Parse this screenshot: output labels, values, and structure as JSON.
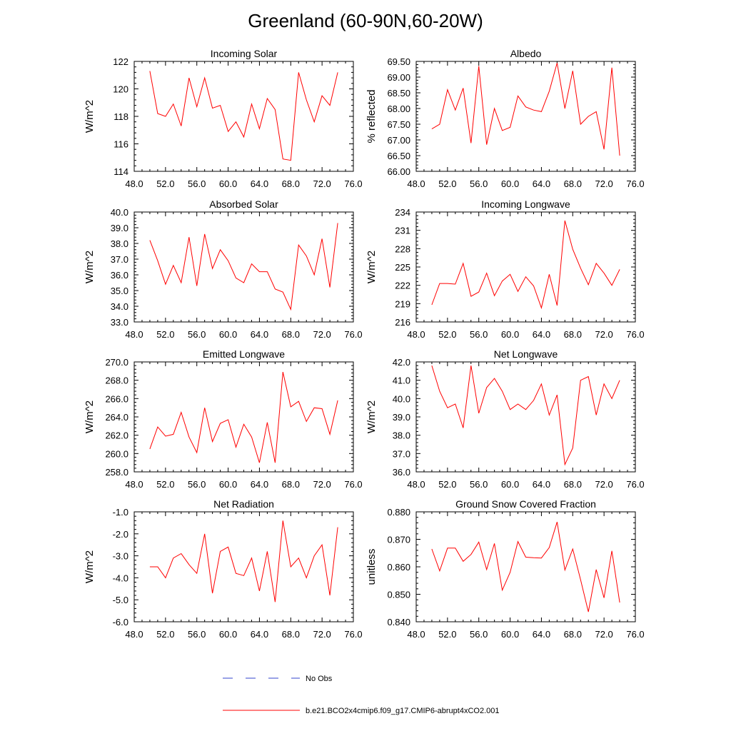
{
  "title": "Greenland (60-90N,60-20W)",
  "colors": {
    "series": "#ff0000",
    "obs": "#3344cc",
    "axis": "#000000"
  },
  "legend": {
    "obs_label": "No Obs",
    "series_label": "b.e21.BCO2x4cmip6.f09_g17.CMIP6-abrupt4xCO2.001"
  },
  "chart_data": [
    {
      "type": "line",
      "title": "Incoming Solar",
      "ylabel": "W/m^2",
      "xlabel": "",
      "xlim": [
        48,
        76
      ],
      "ylim": [
        114,
        122
      ],
      "xticks": [
        "48.0",
        "52.0",
        "56.0",
        "60.0",
        "64.0",
        "68.0",
        "72.0",
        "76.0"
      ],
      "yticks": [
        114,
        116,
        118,
        120,
        122
      ],
      "ytick_labels": [
        "114",
        "116",
        "118",
        "120",
        "122"
      ],
      "x": [
        50,
        51,
        52,
        53,
        54,
        55,
        56,
        57,
        58,
        59,
        60,
        61,
        62,
        63,
        64,
        65,
        66,
        67,
        68,
        69,
        70,
        71,
        72,
        73,
        74
      ],
      "values": [
        121.3,
        118.2,
        118.0,
        118.9,
        117.3,
        120.8,
        118.7,
        120.8,
        118.6,
        118.8,
        116.9,
        117.6,
        116.5,
        118.9,
        117.1,
        119.3,
        118.5,
        114.9,
        114.8,
        121.2,
        119.2,
        117.6,
        119.5,
        118.8,
        121.2
      ]
    },
    {
      "type": "line",
      "title": "Albedo",
      "ylabel": "% reflected",
      "xlabel": "",
      "xlim": [
        48,
        76
      ],
      "ylim": [
        66.0,
        69.5
      ],
      "xticks": [
        "48.0",
        "52.0",
        "56.0",
        "60.0",
        "64.0",
        "68.0",
        "72.0",
        "76.0"
      ],
      "yticks": [
        66.0,
        66.5,
        67.0,
        67.5,
        68.0,
        68.5,
        69.0,
        69.5
      ],
      "ytick_labels": [
        "66.00",
        "66.50",
        "67.00",
        "67.50",
        "68.00",
        "68.50",
        "69.00",
        "69.50"
      ],
      "x": [
        50,
        51,
        52,
        53,
        54,
        55,
        56,
        57,
        58,
        59,
        60,
        61,
        62,
        63,
        64,
        65,
        66,
        67,
        68,
        69,
        70,
        71,
        72,
        73,
        74
      ],
      "values": [
        67.35,
        67.5,
        68.6,
        67.95,
        68.65,
        66.9,
        69.35,
        66.85,
        68.0,
        67.3,
        67.4,
        68.4,
        68.05,
        67.95,
        67.9,
        68.55,
        69.45,
        68.0,
        69.2,
        67.5,
        67.75,
        67.9,
        66.7,
        69.3,
        66.5
      ]
    },
    {
      "type": "line",
      "title": "Absorbed Solar",
      "ylabel": "W/m^2",
      "xlabel": "",
      "xlim": [
        48,
        76
      ],
      "ylim": [
        33.0,
        40.0
      ],
      "xticks": [
        "48.0",
        "52.0",
        "56.0",
        "60.0",
        "64.0",
        "68.0",
        "72.0",
        "76.0"
      ],
      "yticks": [
        33,
        34,
        35,
        36,
        37,
        38,
        39,
        40
      ],
      "ytick_labels": [
        "33.0",
        "34.0",
        "35.0",
        "36.0",
        "37.0",
        "38.0",
        "39.0",
        "40.0"
      ],
      "x": [
        50,
        51,
        52,
        53,
        54,
        55,
        56,
        57,
        58,
        59,
        60,
        61,
        62,
        63,
        64,
        65,
        66,
        67,
        68,
        69,
        70,
        71,
        72,
        73,
        74
      ],
      "values": [
        38.2,
        36.9,
        35.4,
        36.6,
        35.5,
        38.4,
        35.3,
        38.6,
        36.4,
        37.6,
        36.9,
        35.8,
        35.5,
        36.7,
        36.2,
        36.2,
        35.1,
        34.9,
        33.8,
        37.9,
        37.2,
        36.0,
        38.3,
        35.2,
        39.3
      ]
    },
    {
      "type": "line",
      "title": "Incoming Longwave",
      "ylabel": "W/m^2",
      "xlabel": "",
      "xlim": [
        48,
        76
      ],
      "ylim": [
        216,
        234
      ],
      "xticks": [
        "48.0",
        "52.0",
        "56.0",
        "60.0",
        "64.0",
        "68.0",
        "72.0",
        "76.0"
      ],
      "yticks": [
        216,
        219,
        222,
        225,
        228,
        231,
        234
      ],
      "ytick_labels": [
        "216",
        "219",
        "222",
        "225",
        "228",
        "231",
        "234"
      ],
      "x": [
        50,
        51,
        52,
        53,
        54,
        55,
        56,
        57,
        58,
        59,
        60,
        61,
        62,
        63,
        64,
        65,
        66,
        67,
        68,
        69,
        70,
        71,
        72,
        73,
        74
      ],
      "values": [
        218.8,
        222.3,
        222.3,
        222.2,
        225.6,
        220.2,
        220.9,
        224.0,
        220.3,
        222.7,
        223.8,
        221.0,
        223.4,
        221.9,
        218.3,
        223.8,
        218.7,
        232.6,
        227.9,
        224.8,
        222.1,
        225.6,
        224.0,
        222.0,
        224.6
      ]
    },
    {
      "type": "line",
      "title": "Emitted Longwave",
      "ylabel": "W/m^2",
      "xlabel": "",
      "xlim": [
        48,
        76
      ],
      "ylim": [
        258.0,
        270.0
      ],
      "xticks": [
        "48.0",
        "52.0",
        "56.0",
        "60.0",
        "64.0",
        "68.0",
        "72.0",
        "76.0"
      ],
      "yticks": [
        258,
        260,
        262,
        264,
        266,
        268,
        270
      ],
      "ytick_labels": [
        "258.0",
        "260.0",
        "262.0",
        "264.0",
        "266.0",
        "268.0",
        "270.0"
      ],
      "x": [
        50,
        51,
        52,
        53,
        54,
        55,
        56,
        57,
        58,
        59,
        60,
        61,
        62,
        63,
        64,
        65,
        66,
        67,
        68,
        69,
        70,
        71,
        72,
        73,
        74
      ],
      "values": [
        260.5,
        262.9,
        261.9,
        262.1,
        264.5,
        261.8,
        260.1,
        265.0,
        261.3,
        263.3,
        263.7,
        260.7,
        263.2,
        261.8,
        259.0,
        263.4,
        259.0,
        268.9,
        265.1,
        265.7,
        263.5,
        265.0,
        264.9,
        262.1,
        265.8
      ]
    },
    {
      "type": "line",
      "title": "Net Longwave",
      "ylabel": "W/m^2",
      "xlabel": "",
      "xlim": [
        48,
        76
      ],
      "ylim": [
        36.0,
        42.0
      ],
      "xticks": [
        "48.0",
        "52.0",
        "56.0",
        "60.0",
        "64.0",
        "68.0",
        "72.0",
        "76.0"
      ],
      "yticks": [
        36,
        37,
        38,
        39,
        40,
        41,
        42
      ],
      "ytick_labels": [
        "36.0",
        "37.0",
        "38.0",
        "39.0",
        "40.0",
        "41.0",
        "42.0"
      ],
      "x": [
        50,
        51,
        52,
        53,
        54,
        55,
        56,
        57,
        58,
        59,
        60,
        61,
        62,
        63,
        64,
        65,
        66,
        67,
        68,
        69,
        70,
        71,
        72,
        73,
        74
      ],
      "values": [
        41.8,
        40.4,
        39.5,
        39.7,
        38.4,
        41.8,
        39.2,
        40.6,
        41.1,
        40.4,
        39.4,
        39.7,
        39.4,
        39.9,
        40.8,
        39.1,
        40.2,
        36.4,
        37.3,
        41.0,
        41.2,
        39.1,
        40.8,
        40.0,
        41.0
      ]
    },
    {
      "type": "line",
      "title": "Net Radiation",
      "ylabel": "W/m^2",
      "xlabel": "",
      "xlim": [
        48,
        76
      ],
      "ylim": [
        -6.0,
        -1.0
      ],
      "xticks": [
        "48.0",
        "52.0",
        "56.0",
        "60.0",
        "64.0",
        "68.0",
        "72.0",
        "76.0"
      ],
      "yticks": [
        -6,
        -5,
        -4,
        -3,
        -2,
        -1
      ],
      "ytick_labels": [
        "-6.0",
        "-5.0",
        "-4.0",
        "-3.0",
        "-2.0",
        "-1.0"
      ],
      "x": [
        50,
        51,
        52,
        53,
        54,
        55,
        56,
        57,
        58,
        59,
        60,
        61,
        62,
        63,
        64,
        65,
        66,
        67,
        68,
        69,
        70,
        71,
        72,
        73,
        74
      ],
      "values": [
        -3.5,
        -3.5,
        -4.0,
        -3.1,
        -2.9,
        -3.4,
        -3.8,
        -2.0,
        -4.7,
        -2.8,
        -2.6,
        -3.8,
        -3.9,
        -3.1,
        -4.6,
        -2.8,
        -5.1,
        -1.4,
        -3.5,
        -3.1,
        -4.0,
        -3.0,
        -2.5,
        -4.8,
        -1.7
      ]
    },
    {
      "type": "line",
      "title": "Ground Snow Covered Fraction",
      "ylabel": "unitless",
      "xlabel": "",
      "xlim": [
        48,
        76
      ],
      "ylim": [
        0.84,
        0.88
      ],
      "xticks": [
        "48.0",
        "52.0",
        "56.0",
        "60.0",
        "64.0",
        "68.0",
        "72.0",
        "76.0"
      ],
      "yticks": [
        0.84,
        0.85,
        0.86,
        0.87,
        0.88
      ],
      "ytick_labels": [
        "0.840",
        "0.850",
        "0.860",
        "0.870",
        "0.880"
      ],
      "x": [
        50,
        51,
        52,
        53,
        54,
        55,
        56,
        57,
        58,
        59,
        60,
        61,
        62,
        63,
        64,
        65,
        66,
        67,
        68,
        69,
        70,
        71,
        72,
        73,
        74
      ],
      "values": [
        0.8665,
        0.8585,
        0.8668,
        0.8668,
        0.862,
        0.8645,
        0.869,
        0.859,
        0.8685,
        0.8515,
        0.858,
        0.8692,
        0.8635,
        0.8633,
        0.8632,
        0.867,
        0.8763,
        0.8588,
        0.8665,
        0.8553,
        0.8436,
        0.859,
        0.8487,
        0.8658,
        0.847
      ]
    }
  ]
}
